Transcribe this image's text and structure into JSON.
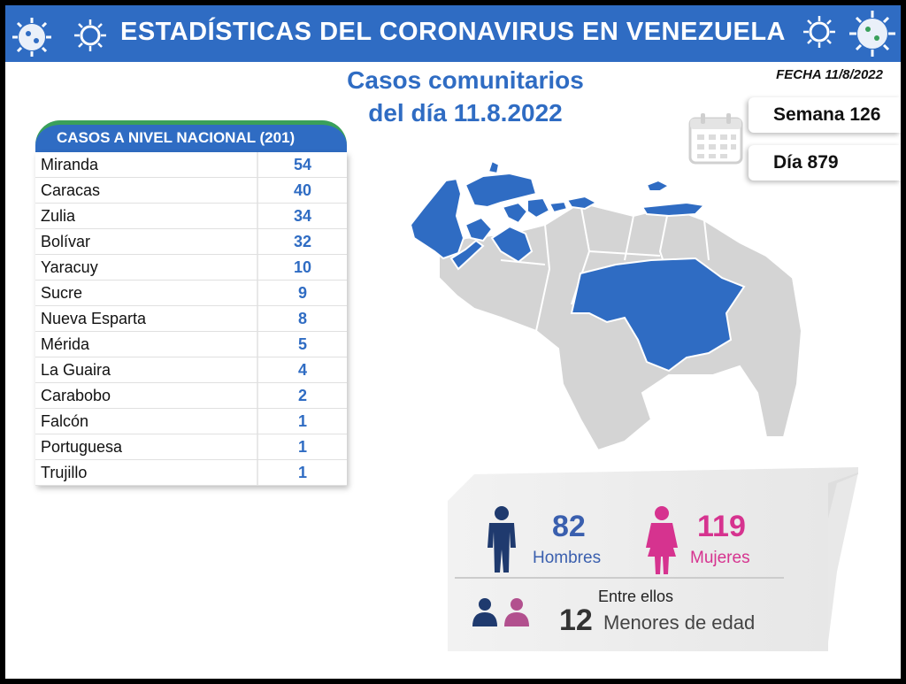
{
  "banner": {
    "title": "ESTADÍSTICAS DEL CORONAVIRUS EN VENEZUELA"
  },
  "fecha": "FECHA 11/8/2022",
  "subtitle": {
    "line1": "Casos comunitarios",
    "line2": "del día 11.8.2022"
  },
  "semana": "Semana 126",
  "dia": "Día 879",
  "table": {
    "header": "CASOS A NIVEL NACIONAL  (201)",
    "rows": [
      {
        "name": "Miranda",
        "value": "54"
      },
      {
        "name": "Caracas",
        "value": "40"
      },
      {
        "name": "Zulia",
        "value": "34"
      },
      {
        "name": "Bolívar",
        "value": "32"
      },
      {
        "name": "Yaracuy",
        "value": "10"
      },
      {
        "name": "Sucre",
        "value": "9"
      },
      {
        "name": "Nueva Esparta",
        "value": "8"
      },
      {
        "name": "Mérida",
        "value": "5"
      },
      {
        "name": "La Guaira",
        "value": "4"
      },
      {
        "name": "Carabobo",
        "value": "2"
      },
      {
        "name": "Falcón",
        "value": "1"
      },
      {
        "name": "Portuguesa",
        "value": "1"
      },
      {
        "name": "Trujillo",
        "value": "1"
      }
    ]
  },
  "stats": {
    "men_count": "82",
    "men_label": "Hombres",
    "women_count": "119",
    "women_label": "Mujeres",
    "minors_intro": "Entre ellos",
    "minors_count": "12",
    "minors_label": "Menores de edad"
  },
  "colors": {
    "brand_blue": "#2f6cc3",
    "men": "#1f3a6e",
    "women": "#d6338f",
    "map_gray": "#d4d4d4",
    "accent_green": "#3aa05a"
  },
  "icons": [
    "virus-icon",
    "calendar-icon",
    "man-icon",
    "woman-icon",
    "children-icon"
  ]
}
